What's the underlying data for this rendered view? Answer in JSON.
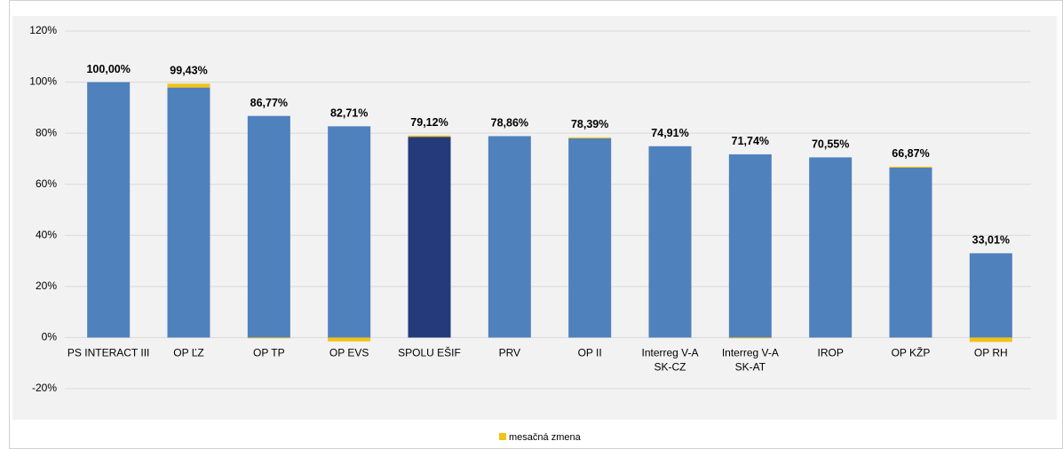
{
  "chart_data": {
    "type": "stacked_bar",
    "categories": [
      "PS INTERACT III",
      "OP ĽZ",
      "OP TP",
      "OP EVS",
      "SPOLU EŠIF",
      "PRV",
      "OP II",
      "Interreg V-A\nSK-CZ",
      "Interreg V-A\nSK-AT",
      "IROP",
      "OP KŽP",
      "OP RH"
    ],
    "series": [
      {
        "colors": [
          "#4f81bd",
          "#4f81bd",
          "#4f81bd",
          "#4f81bd",
          "#253a7a",
          "#4f81bd",
          "#4f81bd",
          "#4f81bd",
          "#4f81bd",
          "#4f81bd",
          "#4f81bd",
          "#4f81bd"
        ],
        "values": [
          100.0,
          97.9,
          86.77,
          82.71,
          78.6,
          78.86,
          78.0,
          74.91,
          71.74,
          70.55,
          66.5,
          33.01
        ]
      },
      {
        "name": "mesačná zmena",
        "color": "#f2c314",
        "values": [
          0,
          1.5,
          -0.3,
          -1.5,
          0.5,
          0,
          0.4,
          0,
          -0.3,
          0,
          0.4,
          -1.7
        ]
      }
    ],
    "totals": [
      100.0,
      99.43,
      86.77,
      82.71,
      79.12,
      78.86,
      78.39,
      74.91,
      71.74,
      70.55,
      66.87,
      33.01
    ],
    "total_labels": [
      "100,00%",
      "99,43%",
      "86,77%",
      "82,71%",
      "79,12%",
      "78,86%",
      "78,39%",
      "74,91%",
      "71,74%",
      "70,55%",
      "66,87%",
      "33,01%"
    ],
    "ylim": [
      -20,
      120
    ],
    "yticks": [
      {
        "value": -20,
        "label": "-20%"
      },
      {
        "value": 0,
        "label": "0%"
      },
      {
        "value": 20,
        "label": "20%"
      },
      {
        "value": 40,
        "label": "40%"
      },
      {
        "value": 60,
        "label": "60%"
      },
      {
        "value": 80,
        "label": "80%"
      },
      {
        "value": 100,
        "label": "100%"
      },
      {
        "value": 120,
        "label": "120%"
      }
    ],
    "grid": true,
    "legend": "bottom"
  }
}
